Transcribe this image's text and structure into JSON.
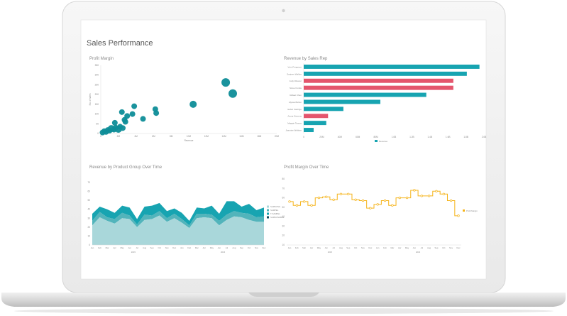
{
  "dashboard": {
    "title": "Sales Performance"
  },
  "colors": {
    "teal": "#17a4b1",
    "teal_dark": "#0e8d98",
    "pink": "#e4566d",
    "orange": "#f5b41b",
    "light_teal": "#a9d7da",
    "mid_teal": "#52b4bb"
  },
  "panels": {
    "profit_margin": {
      "title": "Profit Margin"
    },
    "revenue_by_rep": {
      "title": "Revenue by Sales Rep"
    },
    "revenue_by_group": {
      "title": "Revenue by Product Group Over Time"
    },
    "profit_margin_time": {
      "title": "Profit Margin Over Time"
    }
  },
  "chart_data": [
    {
      "type": "scatter",
      "title": "Profit Margin",
      "xlabel": "Revenue",
      "ylabel": "No. of sales",
      "x_ticks": [
        "0",
        "2M",
        "4M",
        "6M",
        "8M",
        "10M",
        "12M",
        "14M",
        "16M",
        "18M",
        "20M"
      ],
      "y_ticks": [
        "0",
        "50",
        "100",
        "150",
        "200",
        "250",
        "300",
        "350"
      ],
      "xlim": [
        0,
        20
      ],
      "ylim": [
        0,
        350
      ],
      "points": [
        {
          "x": 0.2,
          "y": 5,
          "r": 4
        },
        {
          "x": 0.4,
          "y": 12,
          "r": 4
        },
        {
          "x": 0.6,
          "y": 8,
          "r": 4
        },
        {
          "x": 0.8,
          "y": 18,
          "r": 4
        },
        {
          "x": 1.0,
          "y": 15,
          "r": 4
        },
        {
          "x": 1.2,
          "y": 25,
          "r": 5
        },
        {
          "x": 1.5,
          "y": 20,
          "r": 4
        },
        {
          "x": 1.7,
          "y": 30,
          "r": 4
        },
        {
          "x": 2.0,
          "y": 22,
          "r": 5
        },
        {
          "x": 2.2,
          "y": 35,
          "r": 4
        },
        {
          "x": 2.5,
          "y": 28,
          "r": 4
        },
        {
          "x": 1.6,
          "y": 55,
          "r": 4
        },
        {
          "x": 2.7,
          "y": 70,
          "r": 4
        },
        {
          "x": 3.0,
          "y": 90,
          "r": 4
        },
        {
          "x": 2.4,
          "y": 110,
          "r": 4
        },
        {
          "x": 3.6,
          "y": 100,
          "r": 4
        },
        {
          "x": 3.8,
          "y": 140,
          "r": 4
        },
        {
          "x": 4.8,
          "y": 75,
          "r": 4
        },
        {
          "x": 6.3,
          "y": 105,
          "r": 4
        },
        {
          "x": 6.2,
          "y": 125,
          "r": 4
        },
        {
          "x": 10.5,
          "y": 150,
          "r": 5
        },
        {
          "x": 14.2,
          "y": 262,
          "r": 6
        },
        {
          "x": 15.0,
          "y": 205,
          "r": 6
        },
        {
          "x": 2.8,
          "y": 60,
          "r": 4
        }
      ]
    },
    {
      "type": "bar",
      "orientation": "horizontal",
      "title": "Revenue by Sales Rep",
      "categories": [
        "Vern Ferguson",
        "Sanjeev Walker",
        "Judy Weaver",
        "Steve Fonde",
        "Rafael Chen",
        "Alyssa Bolton",
        "Isobel Castrigo",
        "Aruna Stevens",
        "Maggie Tanner",
        "Jasmine Webber"
      ],
      "values": [
        1.95,
        1.81,
        1.66,
        1.66,
        1.36,
        0.85,
        0.44,
        0.27,
        0.25,
        0.11
      ],
      "bar_colors": [
        "teal",
        "teal",
        "pink",
        "pink",
        "teal",
        "teal",
        "teal",
        "pink",
        "teal",
        "teal"
      ],
      "x_ticks": [
        "0",
        "20M",
        "40M",
        "60M",
        "80M",
        "1.0B",
        "1.2B",
        "1.4B",
        "1.6B",
        "1.8B",
        "2.0B"
      ],
      "xlim": [
        0,
        2.0
      ],
      "legend": [
        "Revenue"
      ]
    },
    {
      "type": "area",
      "title": "Revenue by Product Group Over Time",
      "categories": [
        "Jan",
        "Feb",
        "Mar",
        "Apr",
        "May",
        "Jun",
        "Jul",
        "Aug",
        "Sep",
        "Oct",
        "Nov",
        "Dec",
        "Jan",
        "Feb",
        "Mar",
        "Apr",
        "May",
        "Jun",
        "Jul",
        "Aug",
        "Sep",
        "Oct",
        "Nov",
        "Dec"
      ],
      "year_labels": [
        "2015",
        "2016"
      ],
      "y_ticks": [
        "0",
        "10",
        "20",
        "30",
        "40",
        "50",
        "60",
        "70"
      ],
      "ylim": [
        0,
        70
      ],
      "series": [
        {
          "name": "SAMSUNG",
          "values": [
            22,
            31,
            27,
            24,
            30,
            29,
            20,
            28,
            29,
            33,
            26,
            30,
            25,
            19,
            30,
            31,
            30,
            22,
            28,
            32,
            31,
            28,
            26,
            26
          ]
        },
        {
          "name": "SAMPEL",
          "values": [
            5,
            6,
            4,
            5,
            6,
            4,
            3,
            6,
            4,
            5,
            4,
            5,
            4,
            3,
            5,
            4,
            4,
            5,
            6,
            6,
            5,
            7,
            5,
            6
          ]
        },
        {
          "name": "T-SAMPEL",
          "values": [
            8,
            6,
            9,
            7,
            8,
            9,
            6,
            9,
            11,
            9,
            8,
            6,
            7,
            5,
            7,
            6,
            10,
            8,
            15,
            11,
            7,
            11,
            8,
            10
          ]
        },
        {
          "name": "SAMSUNGBLE",
          "values": [
            0,
            0,
            0,
            0,
            0,
            0,
            0,
            0,
            0,
            0,
            0,
            0,
            0,
            0,
            0,
            0,
            0,
            0,
            0,
            0,
            0,
            0,
            0,
            0
          ]
        }
      ],
      "series_colors": [
        "#a9d7da",
        "#52b4bb",
        "#17a4b1",
        "#0f4a5c"
      ]
    },
    {
      "type": "line",
      "title": "Profit Margin Over Time",
      "categories": [
        "Jan",
        "Feb",
        "Mar",
        "Apr",
        "May",
        "Jun",
        "Jul",
        "Aug",
        "Sep",
        "Oct",
        "Nov",
        "Dec",
        "Jan",
        "Feb",
        "Mar",
        "Apr",
        "May",
        "Jun",
        "Jul",
        "Aug",
        "Sep",
        "Oct",
        "Nov",
        "Dec"
      ],
      "year_labels": [
        "2015",
        "2016"
      ],
      "y_ticks": [
        "10",
        "20",
        "30",
        "40",
        "50",
        "60",
        "70",
        "80"
      ],
      "ylim": [
        10,
        80
      ],
      "values": [
        56,
        52,
        56,
        52,
        60,
        61,
        58,
        64,
        64,
        58,
        57,
        49,
        53,
        57,
        52,
        60,
        60,
        68,
        62,
        62,
        67,
        64,
        57,
        41
      ],
      "legend": [
        "Profit Margin"
      ]
    }
  ]
}
